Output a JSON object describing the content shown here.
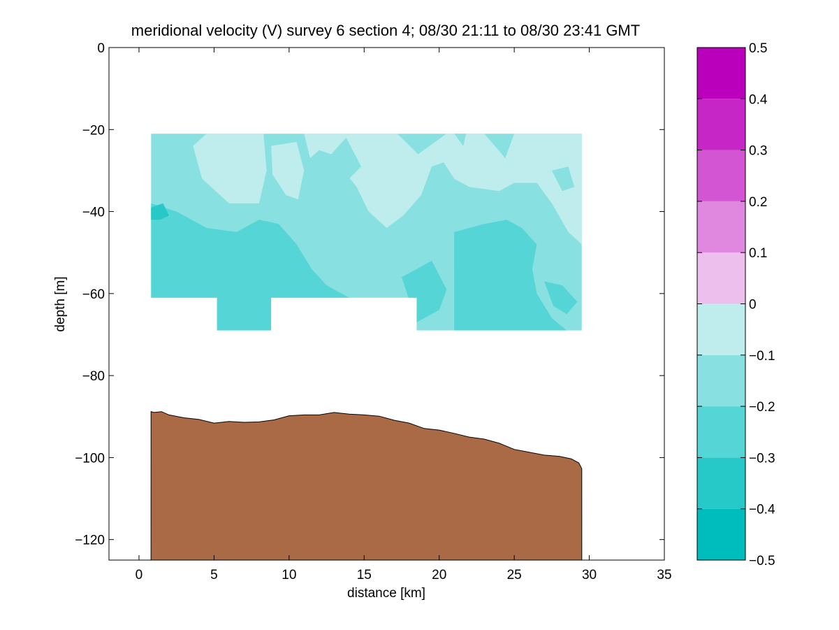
{
  "chart_data": {
    "type": "heatmap",
    "title": "meridional velocity (V) survey 6 section 4; 08/30 21:11 to 08/30 23:41 GMT",
    "xlabel": "distance [km]",
    "ylabel": "depth [m]",
    "xlim": [
      -2,
      35
    ],
    "ylim": [
      -125,
      0
    ],
    "x_ticks": [
      0,
      5,
      10,
      15,
      20,
      25,
      30,
      35
    ],
    "y_ticks": [
      0,
      -20,
      -40,
      -60,
      -80,
      -100,
      -120
    ],
    "colorbar": {
      "levels": [
        -0.5,
        -0.4,
        -0.3,
        -0.2,
        -0.1,
        0,
        0.1,
        0.2,
        0.3,
        0.4,
        0.5
      ],
      "colors": [
        "#00bdbd",
        "#26c8c8",
        "#55d5d5",
        "#88e0e0",
        "#bfeded",
        "#edbfed",
        "#e088e0",
        "#d355d3",
        "#c626c6",
        "#bb00bb"
      ],
      "tick_labels": [
        "0.5",
        "0.4",
        "0.3",
        "0.2",
        "0.1",
        "0",
        "−0.1",
        "−0.2",
        "−0.3",
        "−0.4",
        "−0.5"
      ]
    },
    "data_region": {
      "x_range": [
        0.8,
        29.5
      ],
      "top_depth": -21,
      "bottom_depth_segments": [
        {
          "x": [
            0.8,
            5.2
          ],
          "depth": -61
        },
        {
          "x": [
            5.2,
            8.8
          ],
          "depth": -69
        },
        {
          "x": [
            8.8,
            18.5
          ],
          "depth": -61
        },
        {
          "x": [
            18.5,
            29.5
          ],
          "depth": -69
        }
      ]
    },
    "bottom_topography": {
      "color": "#ab6a46",
      "x": [
        0.8,
        1.0,
        1.5,
        2.0,
        3.0,
        4.0,
        5.0,
        6.0,
        7.0,
        8.0,
        9.0,
        10.0,
        11.0,
        12.0,
        13.0,
        14.0,
        15.0,
        16.0,
        17.0,
        18.0,
        19.0,
        20.0,
        21.0,
        22.0,
        23.0,
        24.0,
        25.0,
        26.0,
        27.0,
        28.0,
        28.8,
        29.3,
        29.5
      ],
      "depth": [
        -88.8,
        -89.0,
        -88.8,
        -89.6,
        -90.3,
        -90.7,
        -91.6,
        -91.2,
        -91.4,
        -91.3,
        -90.8,
        -89.8,
        -89.6,
        -89.6,
        -89.0,
        -89.4,
        -89.6,
        -89.9,
        -90.9,
        -91.6,
        -92.9,
        -93.3,
        -94.1,
        -95.0,
        -95.5,
        -96.5,
        -98.0,
        -98.7,
        -99.4,
        -99.7,
        -100.3,
        -101.3,
        -102.7
      ]
    }
  }
}
